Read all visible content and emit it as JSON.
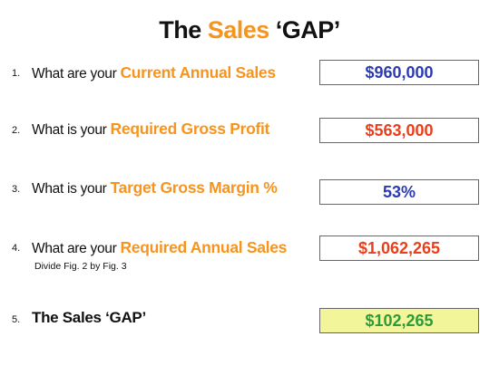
{
  "title": {
    "prefix": "The ",
    "accent": "Sales",
    "suffix": " ‘GAP’"
  },
  "colors": {
    "accent": "#f7941d",
    "blue_value": "#2b3bb3",
    "red_value": "#e8401c",
    "green_value": "#2f9a3a",
    "highlight_fill": "#f3f59b"
  },
  "rows": [
    {
      "number": "1.",
      "prefix": "What are your ",
      "highlight": "Current Annual Sales",
      "value": "$960,000"
    },
    {
      "number": "2.",
      "prefix": "What is your ",
      "highlight": "Required Gross Profit",
      "value": "$563,000"
    },
    {
      "number": "3.",
      "prefix": "What is your ",
      "highlight": "Target Gross Margin %",
      "value": "53%"
    },
    {
      "number": "4.",
      "prefix": "What are your ",
      "highlight": "Required Annual Sales",
      "note": "Divide Fig. 2 by Fig. 3",
      "value": "$1,062,265"
    }
  ],
  "gap": {
    "number": "5.",
    "label": "The Sales ‘GAP’",
    "value": "$102,265"
  }
}
